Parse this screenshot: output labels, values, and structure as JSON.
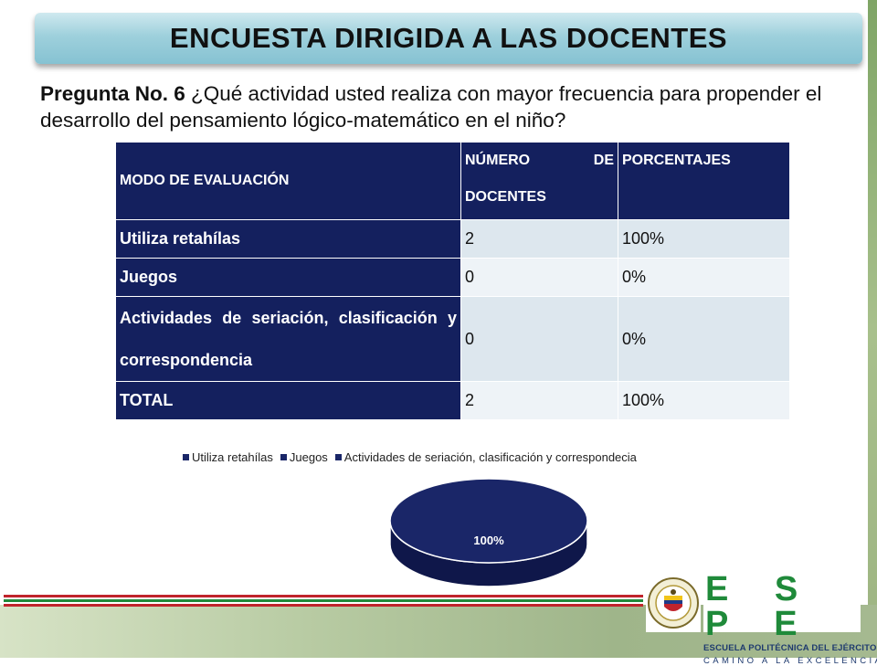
{
  "title": "ENCUESTA DIRIGIDA A LAS DOCENTES",
  "question": {
    "label": "Pregunta No. 6",
    "text": " ¿Qué actividad usted realiza con mayor frecuencia  para propender el desarrollo del pensamiento lógico-matemático en el niño?"
  },
  "table": {
    "headers": [
      "MODO DE EVALUACIÓN",
      "NÚMERO DE DOCENTES",
      "PORCENTAJES"
    ],
    "rows": [
      {
        "label": "Utiliza retahílas",
        "count": "2",
        "percent": "100%"
      },
      {
        "label": "Juegos",
        "count": "0",
        "percent": "0%"
      },
      {
        "label": "Actividades de seriación, clasificación y correspondencia",
        "count": "0",
        "percent": "0%"
      },
      {
        "label": "TOTAL",
        "count": "2",
        "percent": "100%"
      }
    ]
  },
  "chart_data": {
    "type": "pie",
    "categories": [
      "Utiliza retahílas",
      "Juegos",
      "Actividades de seriación, clasificación y correspondecia"
    ],
    "values": [
      100,
      0,
      0
    ],
    "data_labels": [
      "100%"
    ],
    "legend_position": "top",
    "colors": [
      "#1a2668",
      "#1a2668",
      "#1a2668"
    ]
  },
  "logo": {
    "letters": "E S P E",
    "line1": "ESCUELA POLITÉCNICA DEL EJÉRCITO",
    "line2": "CAMINO A LA EXCELENCIA"
  },
  "colors": {
    "table_header": "#14205e",
    "pie": "#1a2668",
    "brand_green": "#1f8a3a",
    "brand_red": "#c0242c"
  }
}
